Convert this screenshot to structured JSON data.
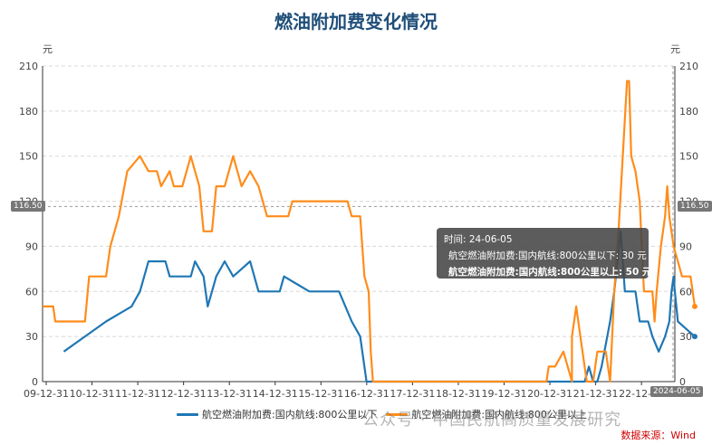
{
  "title": "燃油附加费变化情况",
  "unit_left": "元",
  "unit_right": "元",
  "source": "数据来源：Wind",
  "watermark": "公众号 · 中国民航高质量发展研究",
  "tooltip": {
    "time": "时间: 24-06-05",
    "row1": "航空燃油附加费:国内航线:800公里以下: 30  元",
    "row2": "航空燃油附加费:国内航线:800公里以上: 50  元"
  },
  "callouts": {
    "left_value": "116.50",
    "right_value": "116.50",
    "end_date": "2024-06-05"
  },
  "colors": {
    "series1": "#1f77b4",
    "series2": "#ff8c1a",
    "tooltip_bg": "#464646",
    "title": "#1f4e79"
  },
  "chart_data": {
    "type": "line",
    "title": "燃油附加费变化情况",
    "xlabel": "",
    "ylabel": "元",
    "ylim": [
      0,
      210
    ],
    "yticks": [
      0,
      30,
      60,
      90,
      120,
      150,
      180,
      210
    ],
    "xticks": [
      "09-12-31",
      "10-12-31",
      "11-12-31",
      "12-12-31",
      "13-12-31",
      "14-12-31",
      "15-12-31",
      "16-12-31",
      "17-12-31",
      "18-12-31",
      "19-12-31",
      "20-12-31",
      "21-12-31",
      "22-12-31",
      "2024-06-05"
    ],
    "xlim": [
      2009.5,
      2024.43
    ],
    "grid": true,
    "legend": "bottom",
    "series": [
      {
        "name": "航空燃油附加费:国内航线:800公里以下",
        "points": [
          [
            2010.0,
            20
          ],
          [
            2010.5,
            30
          ],
          [
            2011.0,
            40
          ],
          [
            2011.3,
            45
          ],
          [
            2011.6,
            50
          ],
          [
            2011.8,
            60
          ],
          [
            2011.9,
            70
          ],
          [
            2012.0,
            80
          ],
          [
            2012.3,
            80
          ],
          [
            2012.4,
            80
          ],
          [
            2012.5,
            70
          ],
          [
            2012.7,
            70
          ],
          [
            2013.0,
            70
          ],
          [
            2013.1,
            80
          ],
          [
            2013.3,
            70
          ],
          [
            2013.4,
            50
          ],
          [
            2013.6,
            70
          ],
          [
            2013.8,
            80
          ],
          [
            2014.0,
            70
          ],
          [
            2014.2,
            75
          ],
          [
            2014.4,
            80
          ],
          [
            2014.6,
            60
          ],
          [
            2014.8,
            60
          ],
          [
            2015.1,
            60
          ],
          [
            2015.2,
            70
          ],
          [
            2015.5,
            65
          ],
          [
            2015.8,
            60
          ],
          [
            2016.1,
            60
          ],
          [
            2016.5,
            60
          ],
          [
            2016.8,
            40
          ],
          [
            2017.0,
            30
          ],
          [
            2017.1,
            10
          ],
          [
            2017.15,
            0
          ],
          [
            2018.5,
            0
          ],
          [
            2022.0,
            0
          ],
          [
            2022.3,
            0
          ],
          [
            2022.4,
            10
          ],
          [
            2022.5,
            0
          ],
          [
            2022.6,
            0
          ],
          [
            2022.7,
            10
          ],
          [
            2022.9,
            40
          ],
          [
            2023.0,
            60
          ],
          [
            2023.15,
            100
          ],
          [
            2023.25,
            60
          ],
          [
            2023.4,
            60
          ],
          [
            2023.5,
            60
          ],
          [
            2023.6,
            40
          ],
          [
            2023.8,
            40
          ],
          [
            2023.9,
            30
          ],
          [
            2024.05,
            20
          ],
          [
            2024.2,
            30
          ],
          [
            2024.3,
            40
          ],
          [
            2024.35,
            60
          ],
          [
            2024.4,
            70
          ],
          [
            2024.43,
            60
          ],
          [
            2024.5,
            40
          ],
          [
            2024.7,
            35
          ],
          [
            2024.9,
            30
          ]
        ]
      },
      {
        "name": "航空燃油附加费:国内航线:800公里以上",
        "points": [
          [
            2009.5,
            50
          ],
          [
            2009.75,
            50
          ],
          [
            2009.8,
            40
          ],
          [
            2010.0,
            40
          ],
          [
            2010.3,
            40
          ],
          [
            2010.5,
            40
          ],
          [
            2010.6,
            70
          ],
          [
            2011.0,
            70
          ],
          [
            2011.1,
            90
          ],
          [
            2011.3,
            110
          ],
          [
            2011.5,
            140
          ],
          [
            2011.8,
            150
          ],
          [
            2012.0,
            140
          ],
          [
            2012.2,
            140
          ],
          [
            2012.3,
            130
          ],
          [
            2012.5,
            140
          ],
          [
            2012.6,
            130
          ],
          [
            2012.8,
            130
          ],
          [
            2012.9,
            140
          ],
          [
            2013.0,
            150
          ],
          [
            2013.2,
            130
          ],
          [
            2013.3,
            100
          ],
          [
            2013.5,
            100
          ],
          [
            2013.6,
            130
          ],
          [
            2013.8,
            130
          ],
          [
            2014.0,
            150
          ],
          [
            2014.2,
            130
          ],
          [
            2014.4,
            140
          ],
          [
            2014.6,
            130
          ],
          [
            2014.8,
            110
          ],
          [
            2015.0,
            110
          ],
          [
            2015.3,
            110
          ],
          [
            2015.4,
            120
          ],
          [
            2015.8,
            120
          ],
          [
            2016.2,
            120
          ],
          [
            2016.7,
            120
          ],
          [
            2016.8,
            110
          ],
          [
            2017.0,
            110
          ],
          [
            2017.1,
            70
          ],
          [
            2017.2,
            60
          ],
          [
            2017.25,
            20
          ],
          [
            2017.3,
            0
          ],
          [
            2018.0,
            0
          ],
          [
            2019.0,
            0
          ],
          [
            2020.0,
            0
          ],
          [
            2021.0,
            0
          ],
          [
            2022.0,
            0
          ],
          [
            2021.4,
            0
          ],
          [
            2021.45,
            10
          ],
          [
            2021.6,
            10
          ],
          [
            2021.8,
            20
          ],
          [
            2022.0,
            30
          ],
          [
            2022.1,
            50
          ],
          [
            2022.2,
            30
          ],
          [
            2022.3,
            10
          ],
          [
            2022.35,
            0
          ],
          [
            2022.5,
            0
          ],
          [
            2022.6,
            20
          ],
          [
            2022.8,
            20
          ],
          [
            2022.9,
            0
          ],
          [
            2023.0,
            60
          ],
          [
            2023.1,
            100
          ],
          [
            2023.2,
            150
          ],
          [
            2023.3,
            200
          ],
          [
            2023.35,
            200
          ],
          [
            2023.4,
            150
          ],
          [
            2023.5,
            140
          ],
          [
            2023.6,
            120
          ],
          [
            2023.65,
            90
          ],
          [
            2023.7,
            60
          ],
          [
            2023.8,
            60
          ],
          [
            2023.9,
            60
          ],
          [
            2023.95,
            40
          ],
          [
            2024.0,
            60
          ],
          [
            2024.1,
            90
          ],
          [
            2024.2,
            110
          ],
          [
            2024.25,
            130
          ],
          [
            2024.3,
            110
          ],
          [
            2024.4,
            90
          ],
          [
            2024.5,
            80
          ],
          [
            2024.6,
            70
          ],
          [
            2024.8,
            70
          ],
          [
            2024.9,
            50
          ]
        ]
      }
    ]
  }
}
